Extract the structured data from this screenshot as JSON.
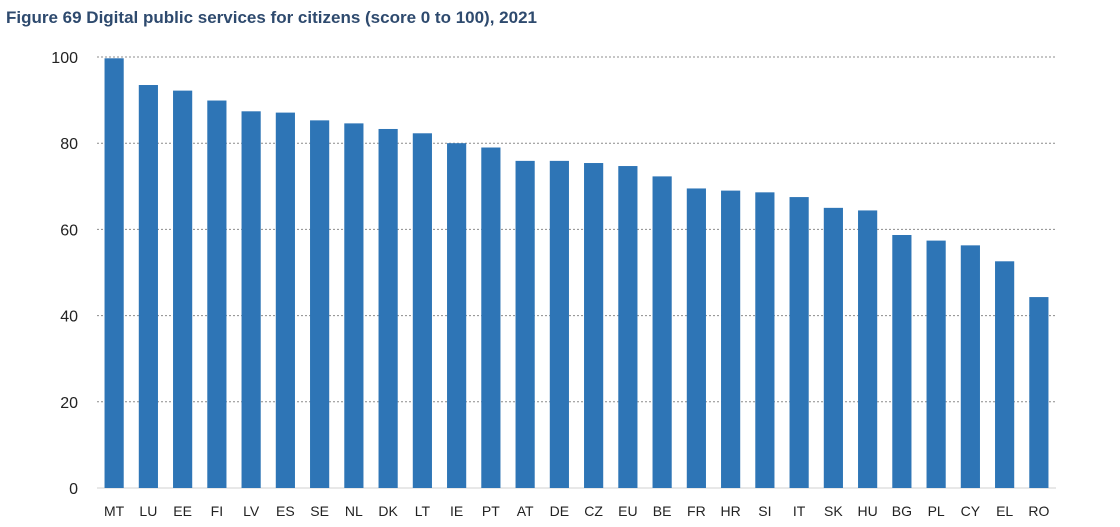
{
  "title": "Figure 69 Digital public services for citizens (score 0 to 100), 2021",
  "colors": {
    "bar": "#2e75b6",
    "grid": "#8c8c8c",
    "title": "#2e4a6e"
  },
  "chart_data": {
    "type": "bar",
    "title": "Figure 69 Digital public services for citizens (score 0 to 100), 2021",
    "xlabel": "",
    "ylabel": "",
    "ylim": [
      0,
      100
    ],
    "yticks": [
      0,
      20,
      40,
      60,
      80,
      100
    ],
    "grid": true,
    "categories": [
      "MT",
      "LU",
      "EE",
      "FI",
      "LV",
      "ES",
      "SE",
      "NL",
      "DK",
      "LT",
      "IE",
      "PT",
      "AT",
      "DE",
      "CZ",
      "EU",
      "BE",
      "FR",
      "HR",
      "SI",
      "IT",
      "SK",
      "HU",
      "BG",
      "PL",
      "CY",
      "EL",
      "RO"
    ],
    "values": [
      99.7,
      93.5,
      92.2,
      89.9,
      87.4,
      87.1,
      85.3,
      84.6,
      83.3,
      82.3,
      80.0,
      79.0,
      75.9,
      75.9,
      75.4,
      74.7,
      72.3,
      69.5,
      69.0,
      68.6,
      67.5,
      65.0,
      64.4,
      58.7,
      57.4,
      56.3,
      52.6,
      44.3
    ]
  }
}
